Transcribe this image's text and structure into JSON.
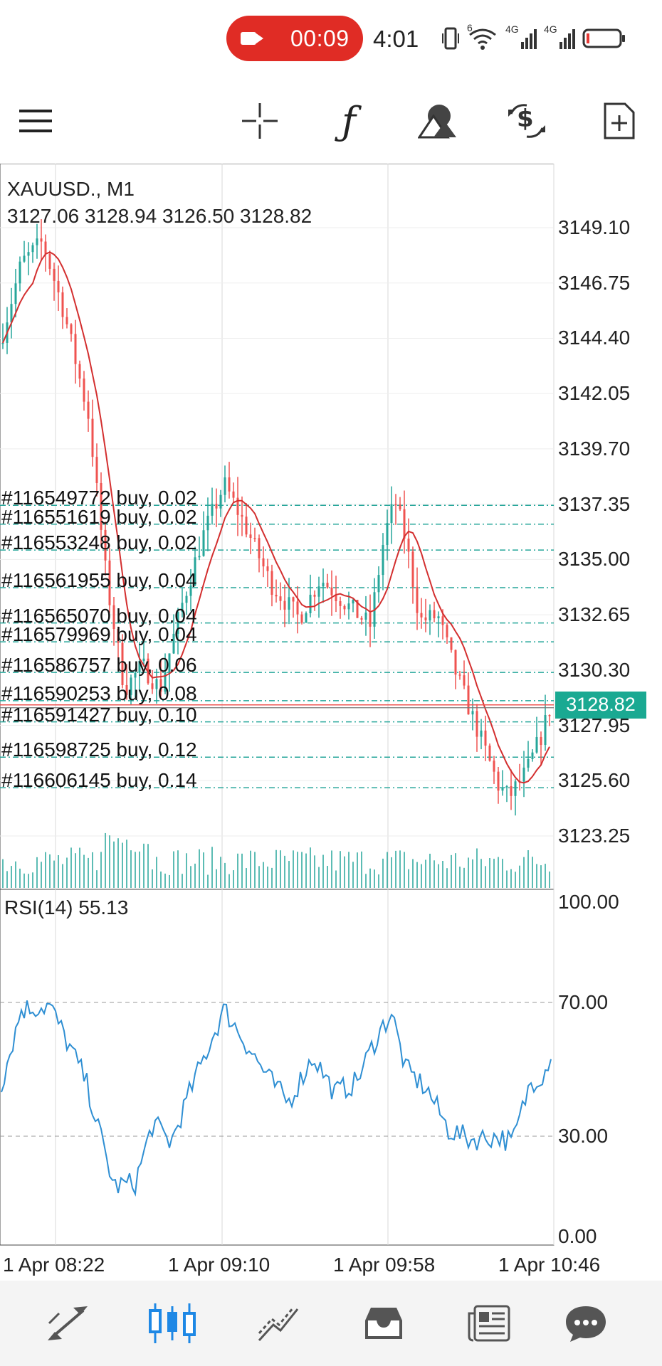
{
  "status_bar": {
    "recording_time": "00:09",
    "clock": "4:01",
    "network_1": "4G",
    "network_2": "4G",
    "wifi_badge": "6"
  },
  "toolbar": {
    "icons": [
      "menu-icon",
      "crosshair-icon",
      "indicators-icon",
      "objects-icon",
      "trade-icon",
      "new-order-icon"
    ]
  },
  "chart": {
    "symbol": "XAUUSD., M1",
    "ohlc": "3127.06 3128.94 3126.50 3128.82",
    "price_ticks": [
      "3149.10",
      "3146.75",
      "3144.40",
      "3142.05",
      "3139.70",
      "3137.35",
      "3135.00",
      "3132.65",
      "3130.30",
      "3127.95",
      "3125.60",
      "3123.25"
    ],
    "current_price": "3128.82",
    "orders": [
      {
        "label": "#116549772 buy, 0.02",
        "price": 3137.3
      },
      {
        "label": "#116551619 buy, 0.02",
        "price": 3136.5
      },
      {
        "label": "#116553248 buy, 0.02",
        "price": 3135.4
      },
      {
        "label": "#116561955 buy, 0.04",
        "price": 3133.8
      },
      {
        "label": "#116565070 buy, 0.04",
        "price": 3132.3
      },
      {
        "label": "#116579969 buy, 0.04",
        "price": 3131.5
      },
      {
        "label": "#116586757 buy, 0.06",
        "price": 3130.2
      },
      {
        "label": "#116590253 buy, 0.08",
        "price": 3129.0
      },
      {
        "label": "#116591427 buy, 0.10",
        "price": 3128.1
      },
      {
        "label": "#116598725 buy, 0.12",
        "price": 3126.6
      },
      {
        "label": "#116606145 buy, 0.14",
        "price": 3125.3
      }
    ],
    "rsi_label": "RSI(14) 55.13",
    "rsi_ticks": [
      "100.00",
      "70.00",
      "30.00",
      "0.00"
    ],
    "time_labels": [
      "1 Apr 08:22",
      "1 Apr 09:10",
      "1 Apr 09:58",
      "1 Apr 10:46"
    ],
    "colors": {
      "bull": "#26a69a",
      "bear": "#ef5350",
      "ma": "#d32f2f",
      "rsi": "#2f8fd3",
      "price_tag": "#1aa992",
      "grid": "#d9d9d9"
    }
  },
  "bottom_nav": {
    "items": [
      "quotes-icon",
      "chart-icon",
      "trade-icon",
      "history-icon",
      "news-icon",
      "messages-icon"
    ],
    "active": "chart-icon",
    "active_color": "#1e88e5"
  }
}
